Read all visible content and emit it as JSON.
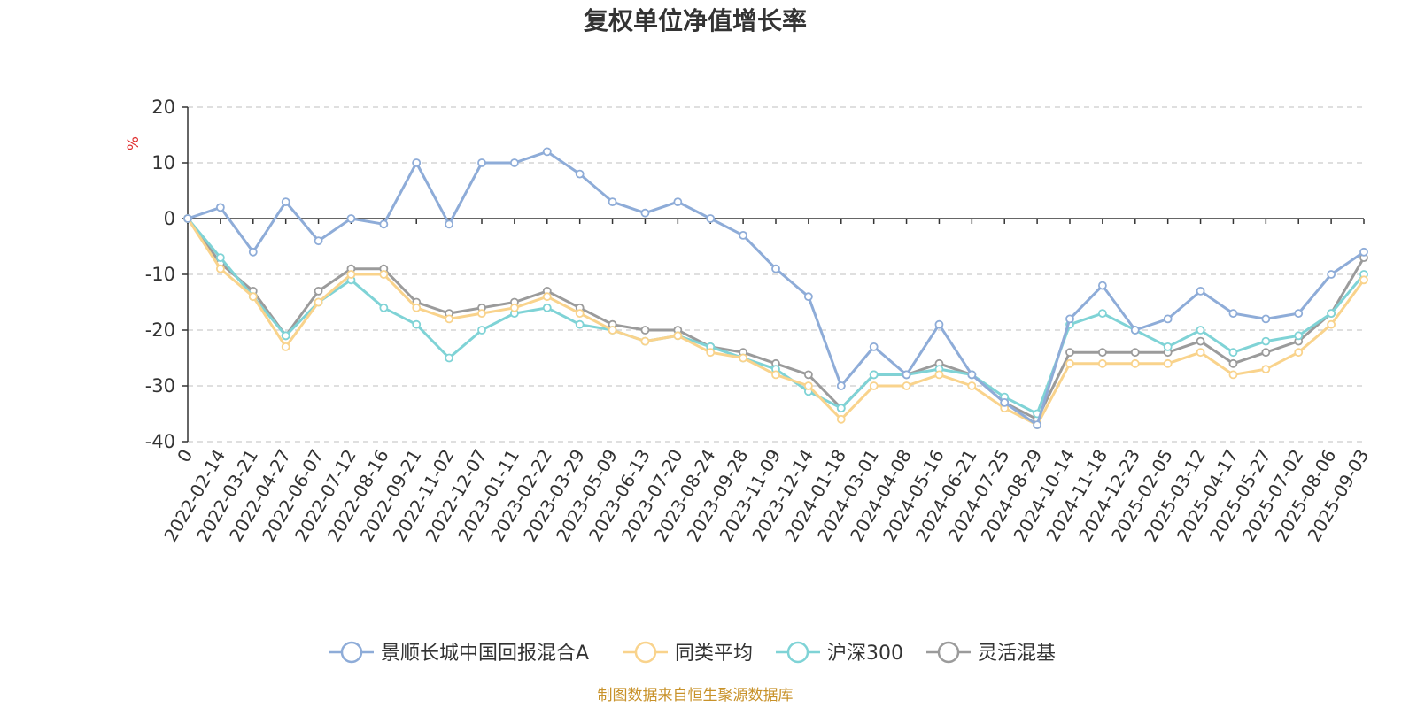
{
  "chart_data": {
    "type": "line",
    "title": "复权单位净值增长率",
    "ylabel": "%",
    "ylim": [
      -40,
      20
    ],
    "yticks": [
      20,
      10,
      0,
      -10,
      -20,
      -30,
      -40
    ],
    "grid": true,
    "legend_position": "bottom",
    "source": "制图数据来自恒生聚源数据库",
    "x": [
      "0",
      "2022-02-14",
      "2022-03-21",
      "2022-04-27",
      "2022-06-07",
      "2022-07-12",
      "2022-08-16",
      "2022-09-21",
      "2022-11-02",
      "2022-12-07",
      "2023-01-11",
      "2023-02-22",
      "2023-03-29",
      "2023-05-09",
      "2023-06-13",
      "2023-07-20",
      "2023-08-24",
      "2023-09-28",
      "2023-11-09",
      "2023-12-14",
      "2024-01-18",
      "2024-03-01",
      "2024-04-08",
      "2024-05-16",
      "2024-06-21",
      "2024-07-25",
      "2024-08-29",
      "2024-10-14",
      "2024-11-18",
      "2024-12-23",
      "2025-02-05",
      "2025-03-12",
      "2025-04-17",
      "2025-05-27",
      "2025-07-02",
      "2025-08-06",
      "2025-09-03"
    ],
    "series": [
      {
        "name": "景顺长城中国回报混合A",
        "color": "#8eacd8",
        "values": [
          0,
          2,
          -6,
          3,
          -4,
          0,
          -1,
          10,
          -1,
          10,
          10,
          12,
          8,
          3,
          1,
          3,
          0,
          -3,
          -9,
          -14,
          -30,
          -23,
          -28,
          -19,
          -28,
          -33,
          -37,
          -18,
          -12,
          -20,
          -18,
          -13,
          -17,
          -18,
          -17,
          -10,
          -6
        ]
      },
      {
        "name": "同类平均",
        "color": "#f9d38c",
        "values": [
          0,
          -9,
          -14,
          -23,
          -15,
          -10,
          -10,
          -16,
          -18,
          -17,
          -16,
          -14,
          -17,
          -20,
          -22,
          -21,
          -24,
          -25,
          -28,
          -30,
          -36,
          -30,
          -30,
          -28,
          -30,
          -34,
          -37,
          -26,
          -26,
          -26,
          -26,
          -24,
          -28,
          -27,
          -24,
          -19,
          -11
        ]
      },
      {
        "name": "沪深300",
        "color": "#7fd3d6",
        "values": [
          0,
          -7,
          -14,
          -21,
          -15,
          -11,
          -16,
          -19,
          -25,
          -20,
          -17,
          -16,
          -19,
          -20,
          -22,
          -21,
          -23,
          -25,
          -27,
          -31,
          -34,
          -28,
          -28,
          -27,
          -28,
          -32,
          -35,
          -19,
          -17,
          -20,
          -23,
          -20,
          -24,
          -22,
          -21,
          -17,
          -10
        ]
      },
      {
        "name": "灵活混基",
        "color": "#9b9b9b",
        "values": [
          0,
          -8,
          -13,
          -21,
          -13,
          -9,
          -9,
          -15,
          -17,
          -16,
          -15,
          -13,
          -16,
          -19,
          -20,
          -20,
          -23,
          -24,
          -26,
          -28,
          -34,
          -28,
          -28,
          -26,
          -28,
          -33,
          -36,
          -24,
          -24,
          -24,
          -24,
          -22,
          -26,
          -24,
          -22,
          -17,
          -7
        ]
      }
    ]
  }
}
